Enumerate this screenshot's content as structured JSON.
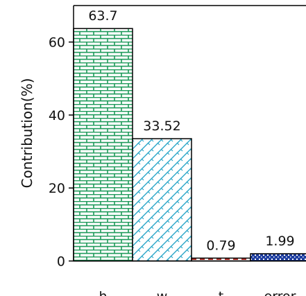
{
  "chart_data": {
    "type": "bar",
    "categories": [
      "h",
      "w",
      "t",
      "error"
    ],
    "values": [
      63.7,
      33.52,
      0.79,
      1.99
    ],
    "data_labels": [
      "63.7",
      "33.52",
      "0.79",
      "1.99"
    ],
    "title": "",
    "xlabel": "",
    "ylabel": "Contribution(%)",
    "ylim": [
      0,
      70
    ],
    "yticks": [
      0,
      20,
      40,
      60
    ],
    "grid": false,
    "legend": "none",
    "bar_patterns": [
      {
        "kind": "brick",
        "color": "#1e9a5a"
      },
      {
        "kind": "diagonal-cross",
        "color": "#2aa6c8"
      },
      {
        "kind": "dashed",
        "color": "#b0302a"
      },
      {
        "kind": "dotted",
        "color": "#1f3fa0"
      }
    ]
  }
}
